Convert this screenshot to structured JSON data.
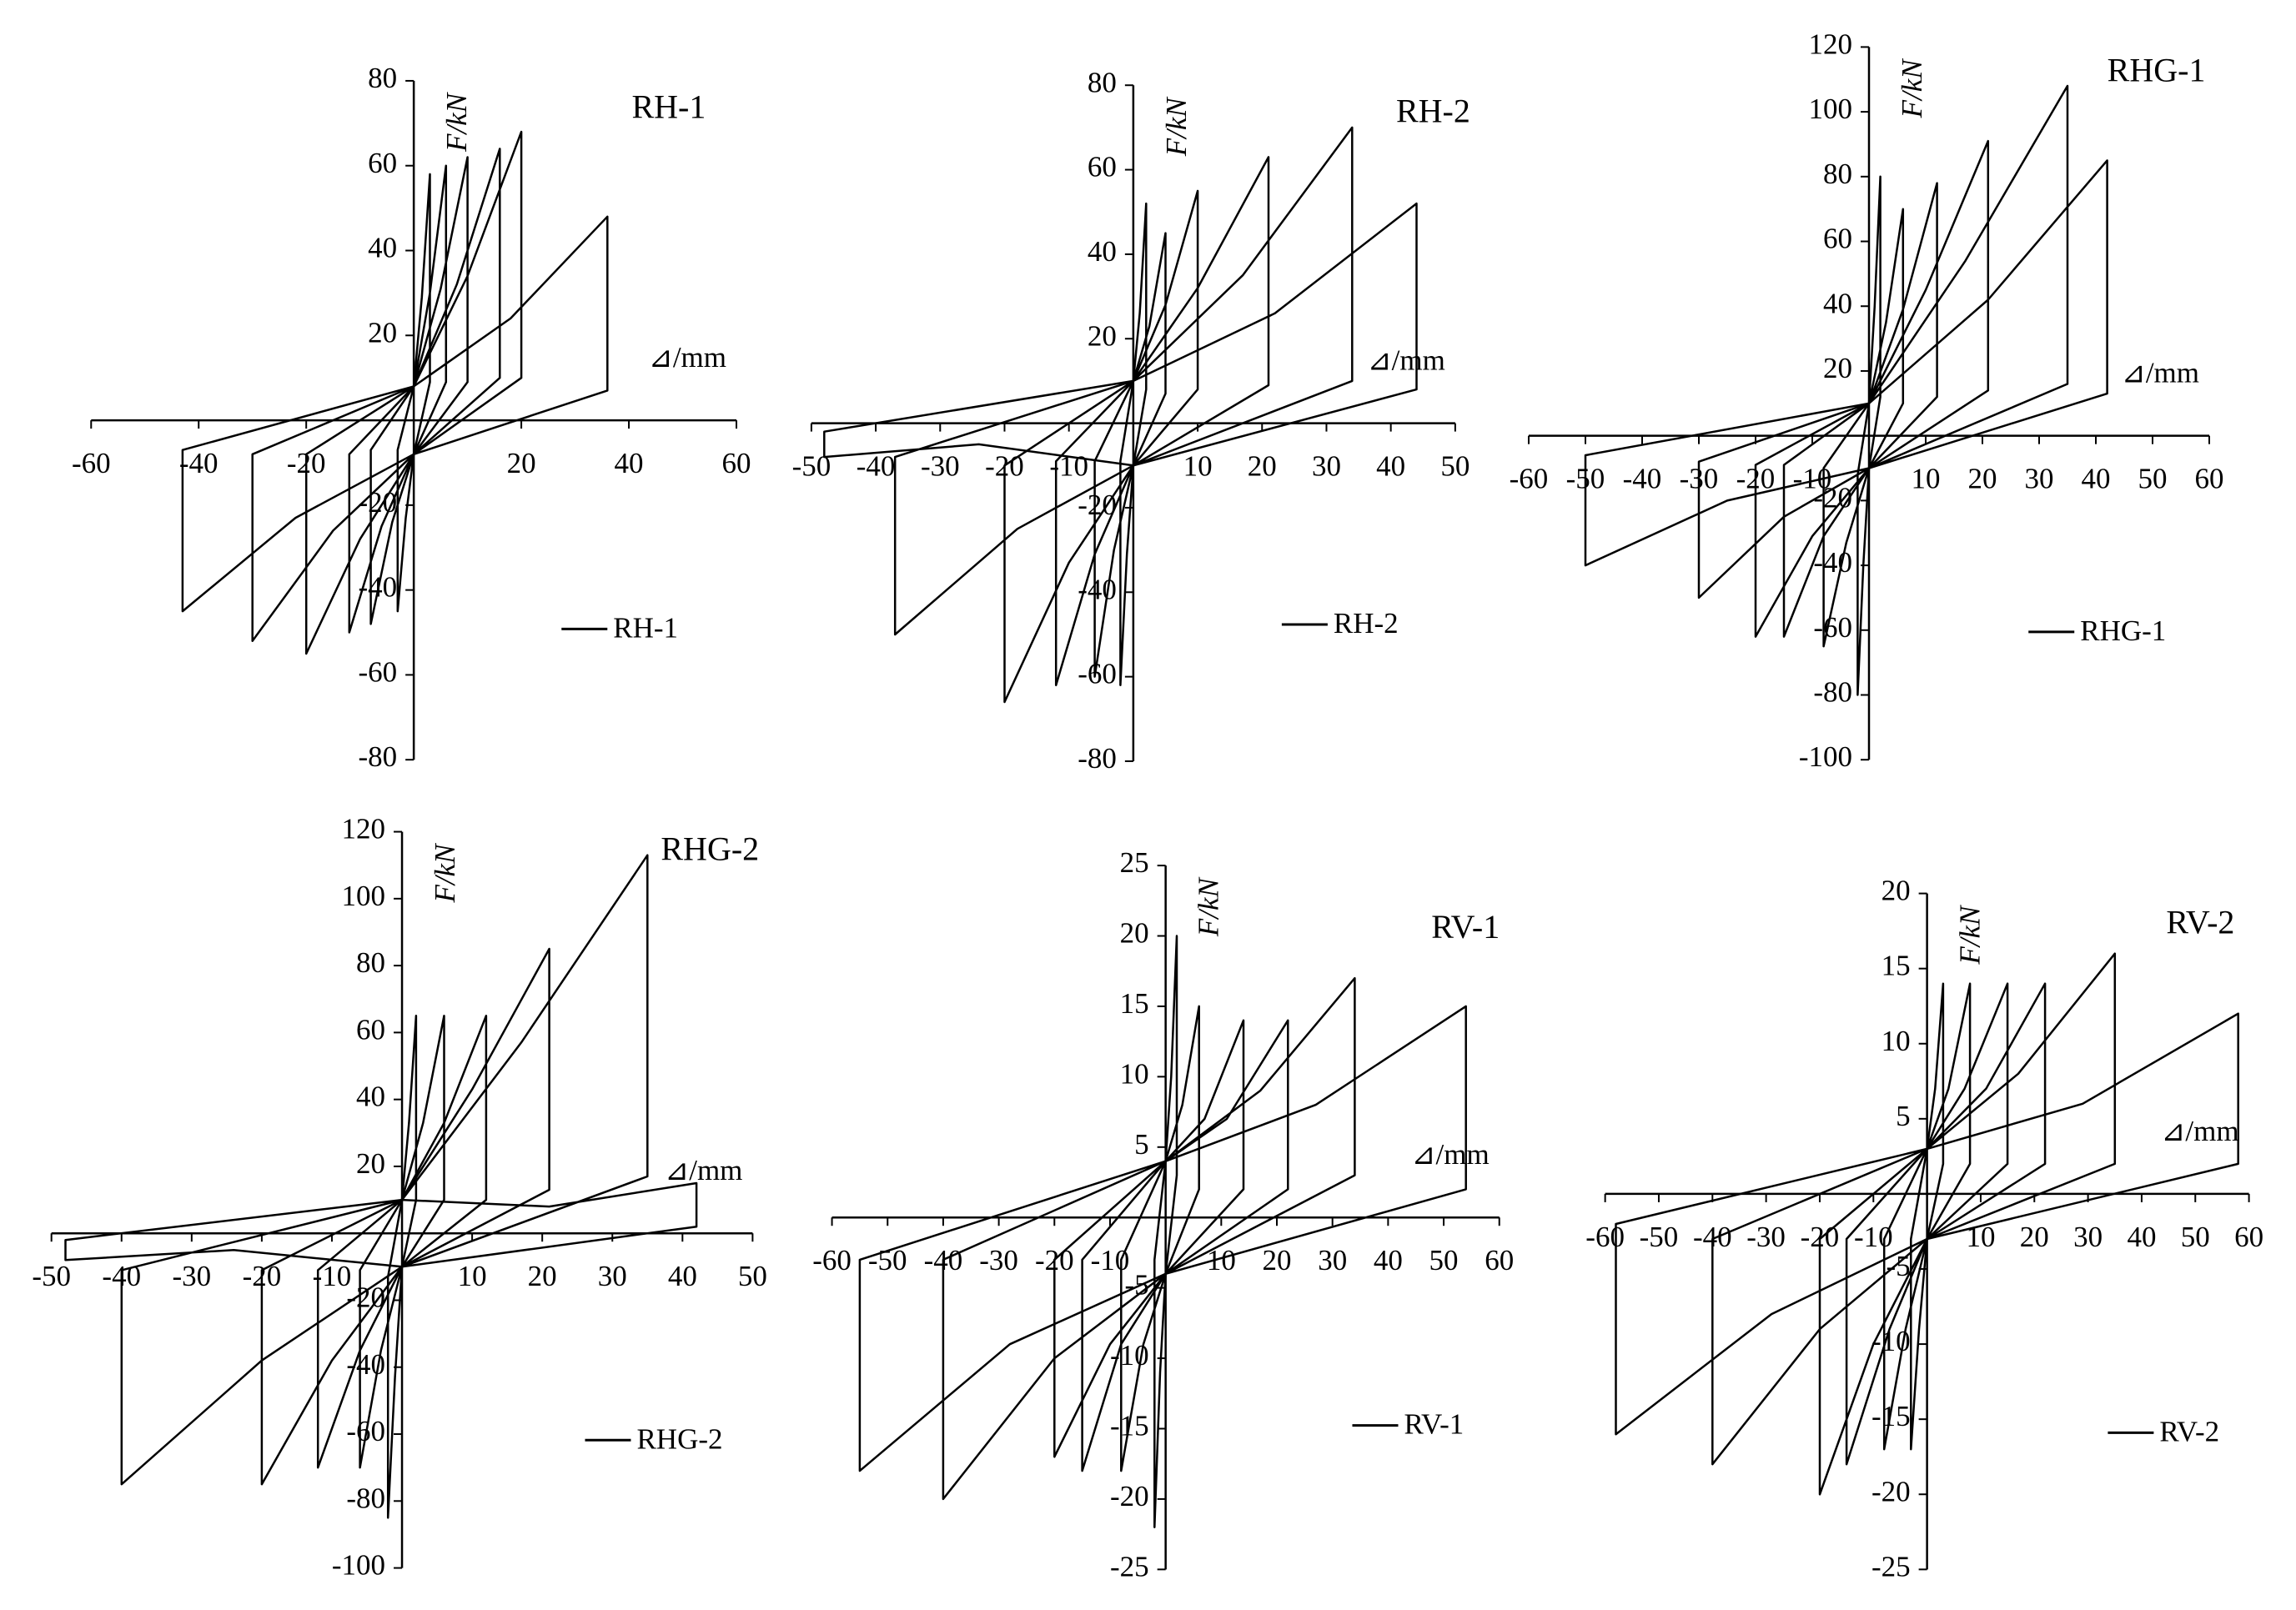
{
  "chart_data": [
    {
      "type": "line",
      "title": "RH-1",
      "x_label": "⊿/mm",
      "y_label": "F/kN",
      "xlim": [
        -60,
        60
      ],
      "ylim": [
        -80,
        80
      ],
      "xticks": [
        -60,
        -40,
        -20,
        20,
        40,
        60
      ],
      "yticks": [
        -80,
        -60,
        -40,
        -20,
        20,
        40,
        60,
        80
      ],
      "x": [
        0,
        1.5,
        3,
        3,
        0,
        -1.5,
        -3,
        -3,
        0,
        3,
        6,
        6,
        0,
        -4,
        -8,
        -8,
        0,
        5,
        10,
        10,
        0,
        -6,
        -12,
        -12,
        0,
        8,
        16,
        16,
        0,
        -10,
        -20,
        -20,
        0,
        10,
        20,
        20,
        0,
        -15,
        -30,
        -30,
        0,
        18,
        36,
        36,
        0,
        -22,
        -43,
        -43,
        0
      ],
      "series": [
        {
          "name": "RH-1",
          "color": "#000000",
          "values": [
            8,
            29,
            58,
            9,
            -8,
            -23,
            -45,
            -7,
            8,
            30,
            60,
            9,
            -8,
            -24,
            -48,
            -7,
            8,
            31,
            62,
            9,
            -8,
            -25,
            -50,
            -8,
            8,
            32,
            64,
            10,
            -8,
            -28,
            -55,
            -8,
            8,
            34,
            68,
            10,
            -8,
            -26,
            -52,
            -8,
            8,
            24,
            48,
            7,
            -8,
            -23,
            -45,
            -7,
            8
          ]
        }
      ]
    },
    {
      "type": "line",
      "title": "RH-2",
      "x_label": "⊿/mm",
      "y_label": "F/kN",
      "xlim": [
        -50,
        50
      ],
      "ylim": [
        -80,
        80
      ],
      "xticks": [
        -50,
        -40,
        -30,
        -20,
        -10,
        10,
        20,
        30,
        40,
        50
      ],
      "yticks": [
        -80,
        -60,
        -40,
        -20,
        20,
        40,
        60,
        80
      ],
      "x": [
        0,
        1,
        2,
        2,
        0,
        -1,
        -2,
        -2,
        0,
        2.5,
        5,
        5,
        0,
        -3,
        -6,
        -6,
        0,
        5,
        10,
        10,
        0,
        -6,
        -12,
        -12,
        0,
        10,
        21,
        21,
        0,
        -10,
        -20,
        -20,
        0,
        17,
        34,
        34,
        0,
        -18,
        -37,
        -37,
        0,
        22,
        44,
        44,
        0,
        -24,
        -48,
        -48,
        0
      ],
      "series": [
        {
          "name": "RH-2",
          "color": "#000000",
          "values": [
            10,
            26,
            52,
            8,
            -10,
            -31,
            -62,
            -9,
            10,
            23,
            45,
            7,
            -10,
            -30,
            -60,
            -9,
            10,
            28,
            55,
            8,
            -10,
            -31,
            -62,
            -9,
            10,
            32,
            63,
            9,
            -10,
            -33,
            -66,
            -10,
            10,
            35,
            70,
            10,
            -10,
            -25,
            -50,
            -8,
            10,
            26,
            52,
            8,
            -10,
            -5,
            -8,
            -2,
            10
          ]
        }
      ]
    },
    {
      "type": "line",
      "title": "RHG-1",
      "x_label": "⊿/mm",
      "y_label": "F/kN",
      "xlim": [
        -60,
        60
      ],
      "ylim": [
        -100,
        120
      ],
      "xticks": [
        -60,
        -50,
        -40,
        -30,
        -20,
        -10,
        10,
        20,
        30,
        40,
        50,
        60
      ],
      "yticks": [
        -100,
        -80,
        -60,
        -40,
        -20,
        20,
        40,
        60,
        80,
        100,
        120
      ],
      "x": [
        0,
        1,
        2,
        2,
        0,
        -1,
        -2,
        -2,
        0,
        3,
        6,
        6,
        0,
        -4,
        -8,
        -8,
        0,
        6,
        12,
        12,
        0,
        -8,
        -15,
        -15,
        0,
        10,
        21,
        21,
        0,
        -10,
        -20,
        -20,
        0,
        17,
        35,
        35,
        0,
        -15,
        -30,
        -30,
        0,
        21,
        42,
        42,
        0,
        -25,
        -50,
        -50,
        0
      ],
      "series": [
        {
          "name": "RHG-1",
          "color": "#000000",
          "values": [
            10,
            40,
            80,
            12,
            -10,
            -40,
            -80,
            -12,
            10,
            35,
            70,
            10,
            -10,
            -33,
            -65,
            -10,
            10,
            39,
            78,
            12,
            -10,
            -31,
            -62,
            -9,
            10,
            45,
            91,
            14,
            -10,
            -31,
            -62,
            -9,
            10,
            54,
            108,
            16,
            -10,
            -25,
            -50,
            -8,
            10,
            42,
            85,
            13,
            -10,
            -20,
            -40,
            -6,
            10
          ]
        }
      ]
    },
    {
      "type": "line",
      "title": "RHG-2",
      "x_label": "⊿/mm",
      "y_label": "F/kN",
      "xlim": [
        -50,
        50
      ],
      "ylim": [
        -100,
        120
      ],
      "xticks": [
        -50,
        -40,
        -30,
        -20,
        -10,
        10,
        20,
        30,
        40,
        50
      ],
      "yticks": [
        -100,
        -80,
        -60,
        -40,
        -20,
        20,
        40,
        60,
        80,
        100,
        120
      ],
      "x": [
        0,
        1,
        2,
        2,
        0,
        -1,
        -2,
        -2,
        0,
        3,
        6,
        6,
        0,
        -3,
        -6,
        -6,
        0,
        6,
        12,
        12,
        0,
        -6,
        -12,
        -12,
        0,
        10,
        21,
        21,
        0,
        -10,
        -20,
        -20,
        0,
        17,
        35,
        35,
        0,
        -20,
        -40,
        -40,
        0,
        21,
        42,
        42,
        0,
        -24,
        -48,
        -48,
        0
      ],
      "series": [
        {
          "name": "RHG-2",
          "color": "#000000",
          "values": [
            10,
            33,
            65,
            10,
            -10,
            -43,
            -85,
            -13,
            10,
            33,
            65,
            10,
            -10,
            -35,
            -70,
            -11,
            10,
            33,
            65,
            10,
            -10,
            -35,
            -70,
            -11,
            10,
            43,
            85,
            13,
            -10,
            -38,
            -75,
            -11,
            10,
            57,
            113,
            17,
            -10,
            -38,
            -75,
            -11,
            10,
            8,
            15,
            2,
            -10,
            -5,
            -8,
            -2,
            10
          ]
        }
      ]
    },
    {
      "type": "line",
      "title": "RV-1",
      "x_label": "⊿/mm",
      "y_label": "F/kN",
      "xlim": [
        -60,
        60
      ],
      "ylim": [
        -25,
        25
      ],
      "xticks": [
        -60,
        -50,
        -40,
        -30,
        -20,
        -10,
        10,
        20,
        30,
        40,
        50,
        60
      ],
      "yticks": [
        -25,
        -20,
        -15,
        -10,
        -5,
        5,
        10,
        15,
        20,
        25
      ],
      "x": [
        0,
        1,
        2,
        2,
        0,
        -1,
        -2,
        -2,
        0,
        3,
        6,
        6,
        0,
        -4,
        -8,
        -8,
        0,
        7,
        14,
        14,
        0,
        -8,
        -15,
        -15,
        0,
        11,
        22,
        22,
        0,
        -10,
        -20,
        -20,
        0,
        17,
        34,
        34,
        0,
        -20,
        -40,
        -40,
        0,
        27,
        54,
        54,
        0,
        -28,
        -55,
        -55,
        0
      ],
      "series": [
        {
          "name": "RV-1",
          "color": "#000000",
          "values": [
            4,
            10,
            20,
            3,
            -4,
            -11,
            -22,
            -3,
            4,
            8,
            15,
            2,
            -4,
            -9,
            -18,
            -3,
            4,
            7,
            14,
            2,
            -4,
            -9,
            -18,
            -3,
            4,
            7,
            14,
            2,
            -4,
            -9,
            -17,
            -3,
            4,
            9,
            17,
            3,
            -4,
            -10,
            -20,
            -3,
            4,
            8,
            15,
            2,
            -4,
            -9,
            -18,
            -3,
            4
          ]
        }
      ]
    },
    {
      "type": "line",
      "title": "RV-2",
      "x_label": "⊿/mm",
      "y_label": "F/kN",
      "xlim": [
        -60,
        60
      ],
      "ylim": [
        -25,
        20
      ],
      "xticks": [
        -60,
        -50,
        -40,
        -30,
        -20,
        -10,
        10,
        20,
        30,
        40,
        50,
        60
      ],
      "yticks": [
        -25,
        -20,
        -15,
        -10,
        -5,
        5,
        10,
        15,
        20
      ],
      "x": [
        0,
        1.5,
        3,
        3,
        0,
        -1.5,
        -3,
        -3,
        0,
        4,
        8,
        8,
        0,
        -4,
        -8,
        -8,
        0,
        7,
        15,
        15,
        0,
        -7,
        -15,
        -15,
        0,
        11,
        22,
        22,
        0,
        -10,
        -20,
        -20,
        0,
        17,
        35,
        35,
        0,
        -20,
        -40,
        -40,
        0,
        29,
        58,
        58,
        0,
        -29,
        -58,
        -58,
        0
      ],
      "series": [
        {
          "name": "RV-2",
          "color": "#000000",
          "values": [
            3,
            7,
            14,
            2,
            -3,
            -9,
            -17,
            -3,
            3,
            7,
            14,
            2,
            -3,
            -9,
            -17,
            -3,
            3,
            7,
            14,
            2,
            -3,
            -9,
            -18,
            -3,
            3,
            7,
            14,
            2,
            -3,
            -10,
            -20,
            -3,
            3,
            8,
            16,
            2,
            -3,
            -9,
            -18,
            -3,
            3,
            6,
            12,
            2,
            -3,
            -8,
            -16,
            -2,
            3
          ]
        }
      ]
    }
  ]
}
